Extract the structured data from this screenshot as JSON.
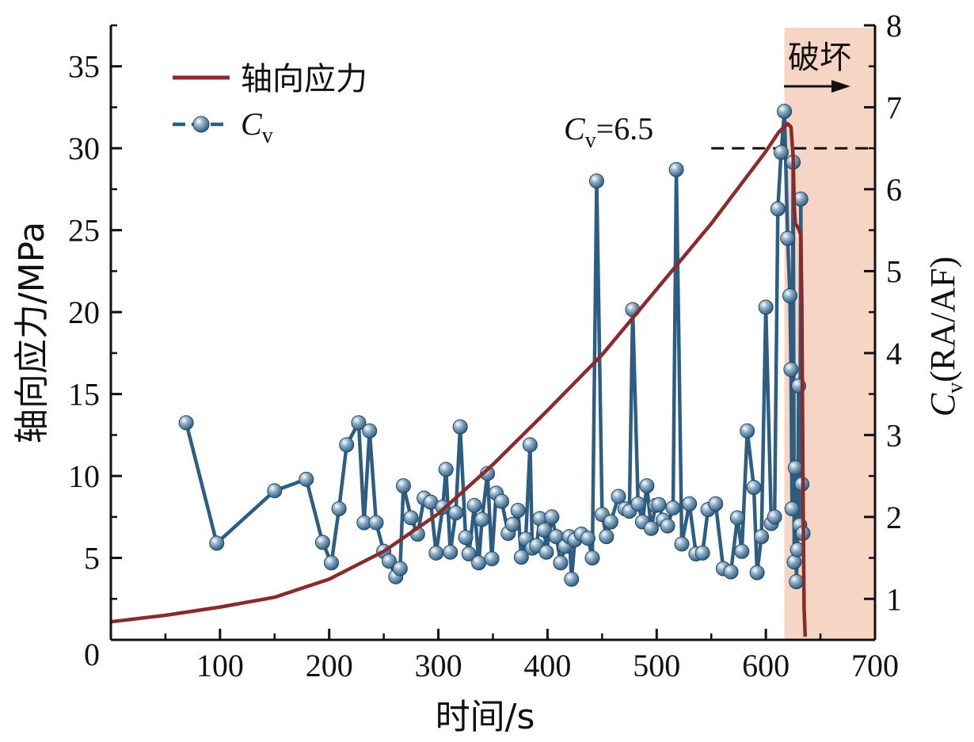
{
  "chart_data": {
    "type": "line",
    "xlabel": "时间/s",
    "ylabel_left": "轴向应力/MPa",
    "ylabel_right": {
      "symbol": "C",
      "subscript": "v",
      "rest": "(RA/AF)"
    },
    "xlim": [
      0,
      700
    ],
    "ylim_left": [
      0,
      37.5
    ],
    "ylim_right": [
      0.5,
      8
    ],
    "x_ticks": [
      "100",
      "200",
      "300",
      "400",
      "500",
      "600",
      "700"
    ],
    "y_left_ticks": [
      "5",
      "10",
      "15",
      "20",
      "25",
      "30",
      "35"
    ],
    "y_left_origin_label": "0",
    "y_right_ticks": [
      "1",
      "2",
      "3",
      "4",
      "5",
      "6",
      "7",
      "8"
    ],
    "threshold": {
      "value": 6.5,
      "label_symbol": "C",
      "label_subscript": "v",
      "label_rest": "=6.5",
      "x_start": 550,
      "x_end": 700
    },
    "failure_region": {
      "x_start": 617,
      "x_end": 700,
      "label": "破坏"
    },
    "legend": {
      "placement": "top-left",
      "stress_label": "轴向应力",
      "cv_symbol": "C",
      "cv_subscript": "v"
    },
    "colors": {
      "stress": "#8b2a2a",
      "cv": "#2e5d82",
      "failure_region": "#f6d5c4",
      "marker_highlight": "#ffffff"
    },
    "series": [
      {
        "name": "轴向应力",
        "axis": "left",
        "style": "line",
        "points": [
          [
            0,
            1.1
          ],
          [
            50,
            1.5
          ],
          [
            100,
            2.0
          ],
          [
            150,
            2.6
          ],
          [
            200,
            3.7
          ],
          [
            250,
            5.4
          ],
          [
            300,
            7.7
          ],
          [
            350,
            10.7
          ],
          [
            400,
            14.0
          ],
          [
            450,
            17.4
          ],
          [
            500,
            21.4
          ],
          [
            550,
            25.4
          ],
          [
            600,
            29.8
          ],
          [
            612,
            31.0
          ],
          [
            620,
            31.5
          ],
          [
            623,
            31.3
          ],
          [
            625,
            29.5
          ],
          [
            626,
            26.5
          ],
          [
            627,
            25.4
          ],
          [
            630,
            25.1
          ],
          [
            632,
            24.7
          ],
          [
            633,
            20.5
          ],
          [
            634,
            10.0
          ],
          [
            635,
            2.0
          ],
          [
            636,
            0.2
          ]
        ]
      },
      {
        "name": "Cv",
        "axis": "right",
        "style": "line-markers",
        "points": [
          [
            69,
            3.15
          ],
          [
            97,
            1.68
          ],
          [
            150,
            2.32
          ],
          [
            179,
            2.46
          ],
          [
            194,
            1.69
          ],
          [
            202,
            1.44
          ],
          [
            209,
            2.1
          ],
          [
            216,
            2.88
          ],
          [
            227,
            3.15
          ],
          [
            232,
            1.93
          ],
          [
            237,
            3.05
          ],
          [
            243,
            1.93
          ],
          [
            250,
            1.58
          ],
          [
            255,
            1.46
          ],
          [
            261,
            1.27
          ],
          [
            265,
            1.37
          ],
          [
            268,
            2.38
          ],
          [
            275,
            1.99
          ],
          [
            281,
            1.79
          ],
          [
            287,
            2.23
          ],
          [
            293,
            2.18
          ],
          [
            298,
            1.56
          ],
          [
            304,
            2.12
          ],
          [
            307,
            2.58
          ],
          [
            311,
            1.57
          ],
          [
            316,
            2.05
          ],
          [
            320,
            3.1
          ],
          [
            325,
            1.75
          ],
          [
            328,
            1.55
          ],
          [
            333,
            2.14
          ],
          [
            337,
            1.44
          ],
          [
            340,
            1.97
          ],
          [
            345,
            2.53
          ],
          [
            349,
            1.49
          ],
          [
            353,
            2.29
          ],
          [
            358,
            2.19
          ],
          [
            364,
            1.8
          ],
          [
            368,
            1.91
          ],
          [
            373,
            2.08
          ],
          [
            376,
            1.51
          ],
          [
            380,
            1.73
          ],
          [
            384,
            2.88
          ],
          [
            386,
            1.62
          ],
          [
            390,
            1.65
          ],
          [
            393,
            1.98
          ],
          [
            397,
            1.84
          ],
          [
            399,
            1.57
          ],
          [
            404,
            2.0
          ],
          [
            408,
            1.76
          ],
          [
            412,
            1.44
          ],
          [
            416,
            1.64
          ],
          [
            420,
            1.76
          ],
          [
            422,
            1.24
          ],
          [
            425,
            1.72
          ],
          [
            431,
            1.79
          ],
          [
            437,
            1.74
          ],
          [
            441,
            1.5
          ],
          [
            445,
            6.1
          ],
          [
            450,
            2.03
          ],
          [
            454,
            1.76
          ],
          [
            458,
            1.94
          ],
          [
            465,
            2.25
          ],
          [
            471,
            2.1
          ],
          [
            475,
            2.07
          ],
          [
            478,
            4.53
          ],
          [
            483,
            2.16
          ],
          [
            487,
            1.94
          ],
          [
            491,
            2.38
          ],
          [
            495,
            1.86
          ],
          [
            499,
            2.14
          ],
          [
            502,
            2.15
          ],
          [
            506,
            1.96
          ],
          [
            510,
            1.89
          ],
          [
            515,
            2.11
          ],
          [
            518,
            6.24
          ],
          [
            523,
            1.67
          ],
          [
            530,
            2.16
          ],
          [
            536,
            1.55
          ],
          [
            542,
            1.56
          ],
          [
            547,
            2.09
          ],
          [
            554,
            2.16
          ],
          [
            561,
            1.37
          ],
          [
            568,
            1.33
          ],
          [
            574,
            1.99
          ],
          [
            578,
            1.58
          ],
          [
            583,
            3.05
          ],
          [
            589,
            2.36
          ],
          [
            592,
            1.32
          ],
          [
            596,
            1.76
          ],
          [
            600,
            4.56
          ],
          [
            605,
            1.92
          ],
          [
            608,
            2.0
          ],
          [
            611,
            5.76
          ],
          [
            614,
            6.45
          ],
          [
            617,
            6.95
          ],
          [
            620,
            5.4
          ],
          [
            622,
            4.7
          ],
          [
            623,
            3.8
          ],
          [
            624,
            2.1
          ],
          [
            625,
            6.33
          ],
          [
            626,
            1.45
          ],
          [
            627,
            2.6
          ],
          [
            628,
            1.21
          ],
          [
            629,
            1.6
          ],
          [
            630,
            3.6
          ],
          [
            631,
            1.9
          ],
          [
            632,
            5.88
          ],
          [
            633,
            2.4
          ],
          [
            634,
            1.8
          ]
        ]
      }
    ]
  }
}
